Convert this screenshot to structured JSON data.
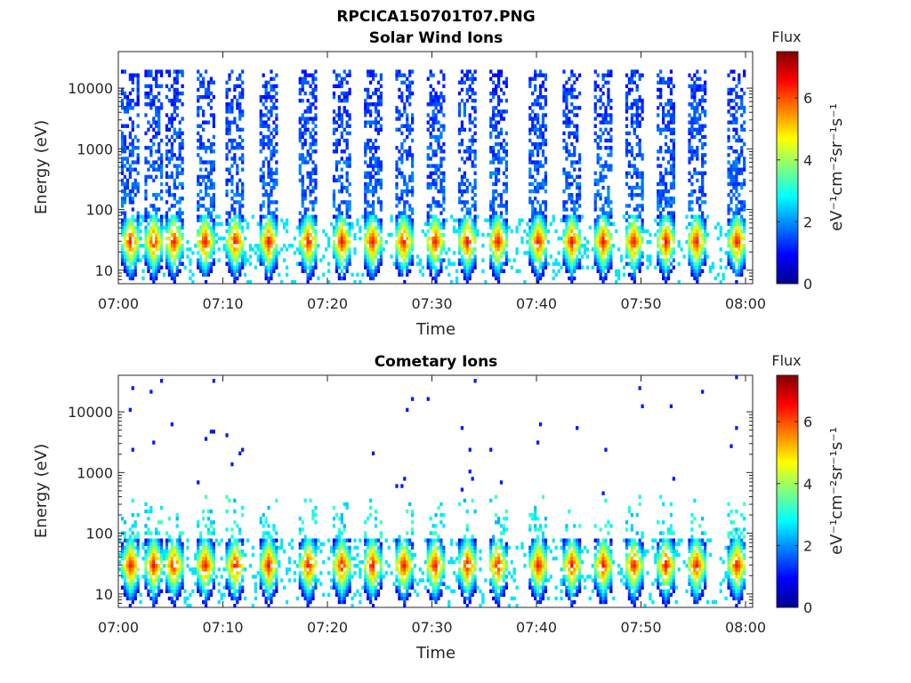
{
  "figure": {
    "title": "RPCICA150701T07.PNG"
  },
  "chart_data": [
    {
      "type": "heatmap",
      "title": "Solar Wind Ions",
      "xlabel": "Time",
      "ylabel": "Energy (eV)",
      "x_ticks": [
        "07:00",
        "07:10",
        "07:20",
        "07:30",
        "07:40",
        "07:50",
        "08:00"
      ],
      "x_range": [
        "07:00",
        "08:00"
      ],
      "y_scale": "log",
      "y_ticks": [
        "10",
        "100",
        "1000",
        "10000"
      ],
      "y_range": [
        6,
        40000
      ],
      "grid": false,
      "colormap": "jet",
      "colorbar": {
        "title": "Flux",
        "label": "eV⁻¹cm⁻²sr⁻¹s⁻¹",
        "ticks": [
          "0",
          "2",
          "4",
          "6"
        ],
        "range": [
          0,
          7.5
        ]
      },
      "sweeps_minutes": [
        1.2,
        3.4,
        5.3,
        8.3,
        11.2,
        14.4,
        18.2,
        21.4,
        24.3,
        27.3,
        30.3,
        33.4,
        36.3,
        40.2,
        43.4,
        46.4,
        49.3,
        52.4,
        55.3,
        59.2
      ],
      "high_energy_max_ev": 20000,
      "peak_energy_ev": 30
    },
    {
      "type": "heatmap",
      "title": "Cometary Ions",
      "xlabel": "Time",
      "ylabel": "Energy (eV)",
      "x_ticks": [
        "07:00",
        "07:10",
        "07:20",
        "07:30",
        "07:40",
        "07:50",
        "08:00"
      ],
      "x_range": [
        "07:00",
        "08:00"
      ],
      "y_scale": "log",
      "y_ticks": [
        "10",
        "100",
        "1000",
        "10000"
      ],
      "y_range": [
        6,
        40000
      ],
      "grid": false,
      "colormap": "jet",
      "colorbar": {
        "title": "Flux",
        "label": "eV⁻¹cm⁻²sr⁻¹s⁻¹",
        "ticks": [
          "0",
          "2",
          "4",
          "6"
        ],
        "range": [
          0,
          7.5
        ]
      },
      "sweeps_minutes": [
        1.2,
        3.4,
        5.3,
        8.3,
        11.2,
        14.4,
        18.2,
        21.4,
        24.3,
        27.3,
        30.3,
        33.4,
        36.3,
        40.2,
        43.4,
        46.4,
        49.3,
        52.4,
        55.3,
        59.2
      ],
      "high_energy_max_ev": 400,
      "peak_energy_ev": 30
    }
  ]
}
